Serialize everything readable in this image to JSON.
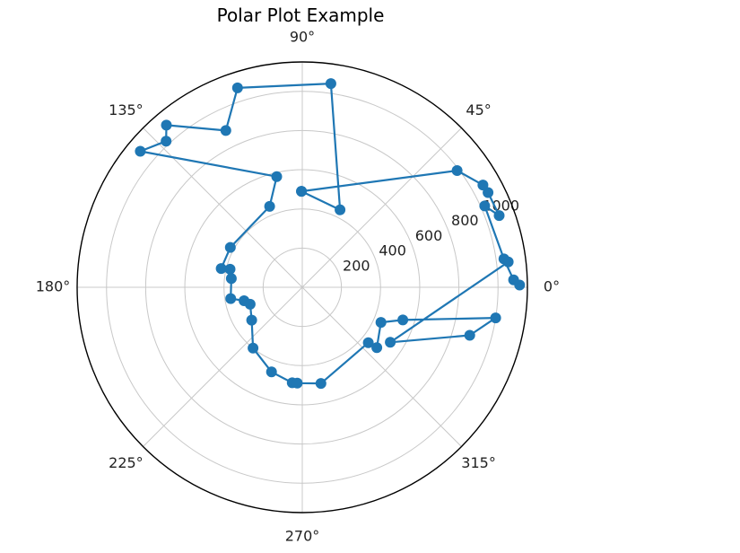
{
  "chart_data": {
    "type": "line",
    "projection": "polar",
    "title": "Polar Plot Example",
    "theta_unit": "degrees",
    "theta_tick_labels": [
      "0°",
      "45°",
      "90°",
      "135°",
      "180°",
      "225°",
      "270°",
      "315°"
    ],
    "r_tick_labels": [
      "200",
      "400",
      "600",
      "800",
      "1000"
    ],
    "r_ticks": [
      200,
      400,
      600,
      800,
      1000
    ],
    "r_max": 1150,
    "grid": true,
    "marker": "circle",
    "color": "#1f77b4",
    "series": [
      {
        "theta_deg": [
          0.6,
          2,
          8,
          24,
          20,
          27,
          29.5,
          37,
          90.5,
          90.5,
          64,
          82,
          108,
          116,
          130,
          133,
          140,
          103,
          112,
          151,
          167,
          166,
          173,
          189,
          193,
          198,
          213,
          231,
          250,
          264,
          267,
          281,
          320,
          321,
          336,
          342,
          351,
          344,
          328,
          7
        ],
        "r": [
          1110,
          1080,
          1040,
          1020,
          1070,
          1065,
          1060,
          990,
          490,
          490,
          440,
          1050,
          1070,
          890,
          1080,
          1020,
          1080,
          580,
          445,
          420,
          425,
          380,
          365,
          370,
          305,
          280,
          308,
          400,
          460,
          490,
          490,
          500,
          440,
          490,
          440,
          540,
          1000,
          890,
          530,
          1060
        ]
      }
    ]
  }
}
